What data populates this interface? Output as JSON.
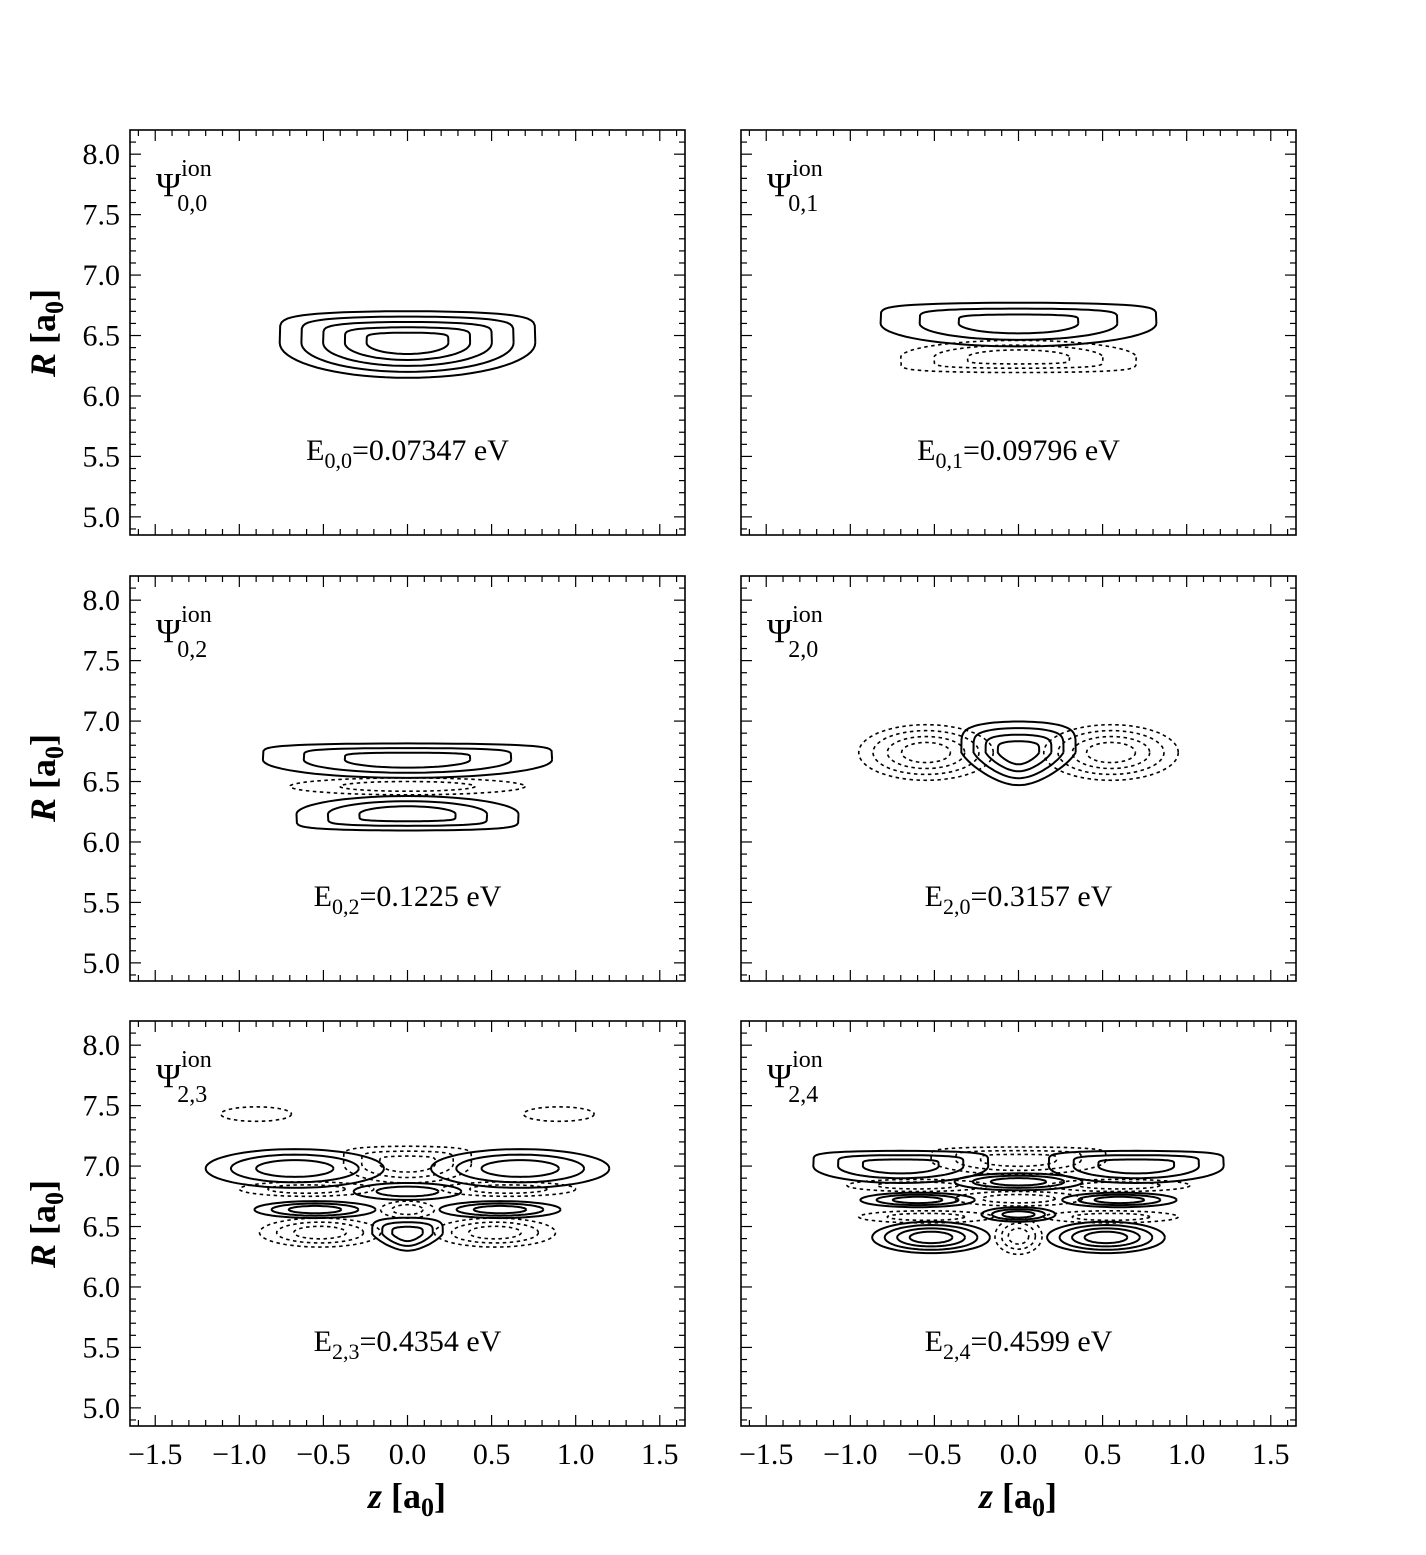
{
  "figure": {
    "xlabel_italic": "z",
    "xlabel_rest": " [a",
    "xlabel_sub": "0",
    "xlabel_close": "]",
    "ylabel_italic": "R",
    "ylabel_rest": " [a",
    "ylabel_sub": "0",
    "ylabel_close": "]"
  },
  "chart_data": [
    {
      "type": "contour",
      "panel": "top-left",
      "title_symbol": "Ψ",
      "title_superscript": "ion",
      "title_subscript": "0,0",
      "energy_prefix": "E",
      "energy_sub": "0,0",
      "energy_value": "=0.07347 eV",
      "xlim": [
        -1.65,
        1.65
      ],
      "ylim": [
        4.85,
        8.2
      ],
      "xticks": [
        "-1.5",
        "-1.0",
        "-0.5",
        "0.0",
        "0.5",
        "1.0",
        "1.5"
      ],
      "yticks": [
        "5.0",
        "5.5",
        "6.0",
        "6.5",
        "7.0",
        "7.5",
        "8.0"
      ],
      "show_xticks": false,
      "show_yticks": true,
      "lobes": [
        {
          "sign": "+",
          "cz": 0.0,
          "cR": 6.44,
          "hz": 0.76,
          "hR": 0.29,
          "levels": 5,
          "shape": "flat-top"
        }
      ]
    },
    {
      "type": "contour",
      "panel": "top-right",
      "title_symbol": "Ψ",
      "title_superscript": "ion",
      "title_subscript": "0,1",
      "energy_prefix": "E",
      "energy_sub": "0,1",
      "energy_value": "=0.09796 eV",
      "xlim": [
        -1.65,
        1.65
      ],
      "ylim": [
        4.85,
        8.2
      ],
      "xticks": [
        "-1.5",
        "-1.0",
        "-0.5",
        "0.0",
        "0.5",
        "1.0",
        "1.5"
      ],
      "yticks": [
        "5.0",
        "5.5",
        "6.0",
        "6.5",
        "7.0",
        "7.5",
        "8.0"
      ],
      "show_xticks": false,
      "show_yticks": false,
      "lobes": [
        {
          "sign": "+",
          "cz": 0.0,
          "cR": 6.6,
          "hz": 0.82,
          "hR": 0.19,
          "levels": 3,
          "shape": "flat-top"
        },
        {
          "sign": "-",
          "cz": 0.0,
          "cR": 6.32,
          "hz": 0.7,
          "hR": 0.14,
          "levels": 3,
          "shape": "flat-bottom"
        }
      ]
    },
    {
      "type": "contour",
      "panel": "middle-left",
      "title_symbol": "Ψ",
      "title_superscript": "ion",
      "title_subscript": "0,2",
      "energy_prefix": "E",
      "energy_sub": "0,2",
      "energy_value": "=0.1225 eV",
      "xlim": [
        -1.65,
        1.65
      ],
      "ylim": [
        4.85,
        8.2
      ],
      "xticks": [
        "-1.5",
        "-1.0",
        "-0.5",
        "0.0",
        "0.5",
        "1.0",
        "1.5"
      ],
      "yticks": [
        "5.0",
        "5.5",
        "6.0",
        "6.5",
        "7.0",
        "7.5",
        "8.0"
      ],
      "show_xticks": false,
      "show_yticks": true,
      "lobes": [
        {
          "sign": "+",
          "cz": 0.0,
          "cR": 6.68,
          "hz": 0.86,
          "hR": 0.15,
          "levels": 3,
          "shape": "flat-top"
        },
        {
          "sign": "-",
          "cz": 0.0,
          "cR": 6.46,
          "hz": 0.7,
          "hR": 0.07,
          "levels": 2,
          "shape": "ellipse"
        },
        {
          "sign": "+",
          "cz": 0.0,
          "cR": 6.23,
          "hz": 0.66,
          "hR": 0.15,
          "levels": 3,
          "shape": "flat-bottom"
        }
      ]
    },
    {
      "type": "contour",
      "panel": "middle-right",
      "title_symbol": "Ψ",
      "title_superscript": "ion",
      "title_subscript": "2,0",
      "energy_prefix": "E",
      "energy_sub": "2,0",
      "energy_value": "=0.3157 eV",
      "xlim": [
        -1.65,
        1.65
      ],
      "ylim": [
        4.85,
        8.2
      ],
      "xticks": [
        "-1.5",
        "-1.0",
        "-0.5",
        "0.0",
        "0.5",
        "1.0",
        "1.5"
      ],
      "yticks": [
        "5.0",
        "5.5",
        "6.0",
        "6.5",
        "7.0",
        "7.5",
        "8.0"
      ],
      "show_xticks": false,
      "show_yticks": false,
      "lobes": [
        {
          "sign": "-",
          "cz": -0.55,
          "cR": 6.74,
          "hz": 0.4,
          "hR": 0.23,
          "levels": 4,
          "shape": "ellipse"
        },
        {
          "sign": "+",
          "cz": 0.0,
          "cR": 6.74,
          "hz": 0.34,
          "hR": 0.27,
          "levels": 4,
          "shape": "cup"
        },
        {
          "sign": "-",
          "cz": 0.55,
          "cR": 6.74,
          "hz": 0.4,
          "hR": 0.23,
          "levels": 4,
          "shape": "ellipse"
        }
      ]
    },
    {
      "type": "contour",
      "panel": "bottom-left",
      "title_symbol": "Ψ",
      "title_superscript": "ion",
      "title_subscript": "2,3",
      "energy_prefix": "E",
      "energy_sub": "2,3",
      "energy_value": "=0.4354 eV",
      "xlim": [
        -1.65,
        1.65
      ],
      "ylim": [
        4.85,
        8.2
      ],
      "xticks": [
        "-1.5",
        "-1.0",
        "-0.5",
        "0.0",
        "0.5",
        "1.0",
        "1.5"
      ],
      "yticks": [
        "5.0",
        "5.5",
        "6.0",
        "6.5",
        "7.0",
        "7.5",
        "8.0"
      ],
      "show_xticks": true,
      "show_yticks": true,
      "lobes": [
        {
          "sign": "-",
          "cz": -0.9,
          "cR": 7.43,
          "hz": 0.21,
          "hR": 0.06,
          "levels": 1,
          "shape": "ellipse"
        },
        {
          "sign": "-",
          "cz": 0.9,
          "cR": 7.43,
          "hz": 0.21,
          "hR": 0.06,
          "levels": 1,
          "shape": "ellipse"
        },
        {
          "sign": "+",
          "cz": -0.67,
          "cR": 6.98,
          "hz": 0.53,
          "hR": 0.16,
          "levels": 3,
          "shape": "ellipse"
        },
        {
          "sign": "+",
          "cz": 0.67,
          "cR": 6.98,
          "hz": 0.53,
          "hR": 0.16,
          "levels": 3,
          "shape": "ellipse"
        },
        {
          "sign": "-",
          "cz": 0.0,
          "cR": 7.02,
          "hz": 0.38,
          "hR": 0.16,
          "levels": 3,
          "shape": "flat-top"
        },
        {
          "sign": "+",
          "cz": 0.0,
          "cR": 6.79,
          "hz": 0.32,
          "hR": 0.07,
          "levels": 2,
          "shape": "ellipse"
        },
        {
          "sign": "-",
          "cz": -0.6,
          "cR": 6.81,
          "hz": 0.4,
          "hR": 0.06,
          "levels": 2,
          "shape": "ellipse"
        },
        {
          "sign": "-",
          "cz": 0.6,
          "cR": 6.81,
          "hz": 0.4,
          "hR": 0.06,
          "levels": 2,
          "shape": "ellipse"
        },
        {
          "sign": "+",
          "cz": -0.55,
          "cR": 6.64,
          "hz": 0.36,
          "hR": 0.07,
          "levels": 3,
          "shape": "ellipse"
        },
        {
          "sign": "+",
          "cz": 0.55,
          "cR": 6.64,
          "hz": 0.36,
          "hR": 0.07,
          "levels": 3,
          "shape": "ellipse"
        },
        {
          "sign": "-",
          "cz": 0.0,
          "cR": 6.64,
          "hz": 0.16,
          "hR": 0.07,
          "levels": 2,
          "shape": "ellipse"
        },
        {
          "sign": "-",
          "cz": -0.52,
          "cR": 6.45,
          "hz": 0.36,
          "hR": 0.12,
          "levels": 3,
          "shape": "ellipse"
        },
        {
          "sign": "-",
          "cz": 0.52,
          "cR": 6.45,
          "hz": 0.36,
          "hR": 0.12,
          "levels": 3,
          "shape": "ellipse"
        },
        {
          "sign": "+",
          "cz": 0.0,
          "cR": 6.44,
          "hz": 0.21,
          "hR": 0.14,
          "levels": 3,
          "shape": "cup"
        }
      ]
    },
    {
      "type": "contour",
      "panel": "bottom-right",
      "title_symbol": "Ψ",
      "title_superscript": "ion",
      "title_subscript": "2,4",
      "energy_prefix": "E",
      "energy_sub": "2,4",
      "energy_value": "=0.4599 eV",
      "xlim": [
        -1.65,
        1.65
      ],
      "ylim": [
        4.85,
        8.2
      ],
      "xticks": [
        "-1.5",
        "-1.0",
        "-0.5",
        "0.0",
        "0.5",
        "1.0",
        "1.5"
      ],
      "yticks": [
        "5.0",
        "5.5",
        "6.0",
        "6.5",
        "7.0",
        "7.5",
        "8.0"
      ],
      "show_xticks": true,
      "show_yticks": false,
      "lobes": [
        {
          "sign": "+",
          "cz": -0.7,
          "cR": 7.0,
          "hz": 0.52,
          "hR": 0.14,
          "levels": 3,
          "shape": "flat-top"
        },
        {
          "sign": "+",
          "cz": 0.7,
          "cR": 7.0,
          "hz": 0.52,
          "hR": 0.14,
          "levels": 3,
          "shape": "flat-top"
        },
        {
          "sign": "-",
          "cz": 0.0,
          "cR": 7.05,
          "hz": 0.52,
          "hR": 0.12,
          "levels": 3,
          "shape": "flat-top"
        },
        {
          "sign": "+",
          "cz": 0.0,
          "cR": 6.87,
          "hz": 0.38,
          "hR": 0.07,
          "levels": 3,
          "shape": "ellipse"
        },
        {
          "sign": "-",
          "cz": -0.6,
          "cR": 6.84,
          "hz": 0.42,
          "hR": 0.05,
          "levels": 2,
          "shape": "ellipse"
        },
        {
          "sign": "-",
          "cz": 0.6,
          "cR": 6.84,
          "hz": 0.42,
          "hR": 0.05,
          "levels": 2,
          "shape": "ellipse"
        },
        {
          "sign": "+",
          "cz": -0.6,
          "cR": 6.72,
          "hz": 0.34,
          "hR": 0.06,
          "levels": 3,
          "shape": "ellipse"
        },
        {
          "sign": "+",
          "cz": 0.6,
          "cR": 6.72,
          "hz": 0.34,
          "hR": 0.06,
          "levels": 3,
          "shape": "ellipse"
        },
        {
          "sign": "-",
          "cz": 0.0,
          "cR": 6.73,
          "hz": 0.38,
          "hR": 0.06,
          "levels": 2,
          "shape": "ellipse"
        },
        {
          "sign": "+",
          "cz": 0.0,
          "cR": 6.6,
          "hz": 0.22,
          "hR": 0.06,
          "levels": 3,
          "shape": "ellipse"
        },
        {
          "sign": "-",
          "cz": -0.55,
          "cR": 6.58,
          "hz": 0.4,
          "hR": 0.05,
          "levels": 2,
          "shape": "ellipse"
        },
        {
          "sign": "-",
          "cz": 0.55,
          "cR": 6.58,
          "hz": 0.4,
          "hR": 0.05,
          "levels": 2,
          "shape": "ellipse"
        },
        {
          "sign": "+",
          "cz": -0.52,
          "cR": 6.41,
          "hz": 0.35,
          "hR": 0.13,
          "levels": 4,
          "shape": "ellipse"
        },
        {
          "sign": "+",
          "cz": 0.52,
          "cR": 6.41,
          "hz": 0.35,
          "hR": 0.13,
          "levels": 4,
          "shape": "ellipse"
        },
        {
          "sign": "-",
          "cz": 0.0,
          "cR": 6.42,
          "hz": 0.14,
          "hR": 0.15,
          "levels": 3,
          "shape": "ellipse"
        }
      ]
    }
  ]
}
